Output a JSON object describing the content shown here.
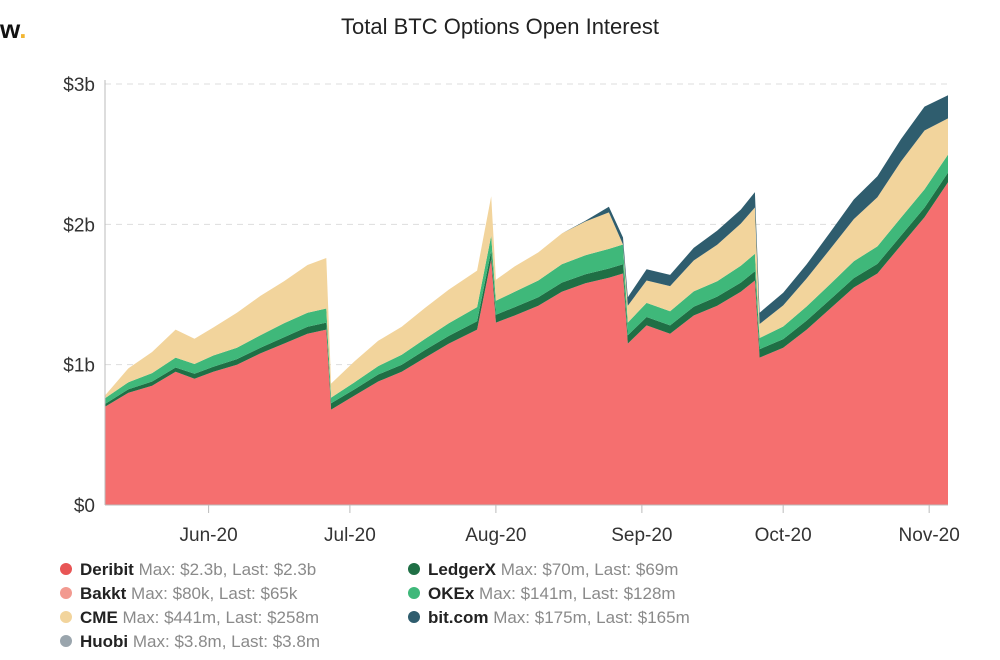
{
  "header": {
    "brand": "w",
    "brand_dot": ".",
    "title": "Total BTC Options Open Interest"
  },
  "colors": {
    "Deribit": "#f56f6f",
    "Bakkt": "#f29a90",
    "CME": "#f2d49c",
    "Huobi": "#9aa5ad",
    "LedgerX": "#1f6f45",
    "OKEx": "#3fb87a",
    "bit.com": "#2f5d6e",
    "gridline": "#dddddd",
    "axis": "#bbbbbb"
  },
  "legend": [
    {
      "series": "Deribit",
      "name": "Deribit",
      "stats": "Max: $2.3b, Last: $2.3b",
      "color": "#e85555"
    },
    {
      "series": "Bakkt",
      "name": "Bakkt",
      "stats": "Max: $80k, Last: $65k",
      "color": "#f29a90"
    },
    {
      "series": "CME",
      "name": "CME",
      "stats": "Max: $441m, Last: $258m",
      "color": "#f2d49c"
    },
    {
      "series": "Huobi",
      "name": "Huobi",
      "stats": "Max: $3.8m, Last: $3.8m",
      "color": "#9aa5ad"
    },
    {
      "series": "LedgerX",
      "name": "LedgerX",
      "stats": "Max: $70m, Last: $69m",
      "color": "#1f6f45"
    },
    {
      "series": "OKEx",
      "name": "OKEx",
      "stats": "Max: $141m, Last: $128m",
      "color": "#3fb87a"
    },
    {
      "series": "bit.com",
      "name": "bit.com",
      "stats": "Max: $175m, Last: $165m",
      "color": "#2f5d6e"
    }
  ],
  "chart_data": {
    "type": "area",
    "title": "Total BTC Options Open Interest",
    "stacked": true,
    "y_unit": "USD billions",
    "ylim": [
      0,
      3
    ],
    "y_ticks": [
      0,
      1,
      2,
      3
    ],
    "y_tick_labels": [
      "$0",
      "$1b",
      "$2b",
      "$3b"
    ],
    "x_ticks": [
      "2020-06-01",
      "2020-07-01",
      "2020-08-01",
      "2020-09-01",
      "2020-10-01",
      "2020-11-01"
    ],
    "x_tick_labels": [
      "Jun-20",
      "Jul-20",
      "Aug-20",
      "Sep-20",
      "Oct-20",
      "Nov-20"
    ],
    "x_range": [
      "2020-05-10",
      "2020-11-05"
    ],
    "grid": true,
    "stack_order": [
      "Deribit",
      "LedgerX",
      "OKEx",
      "CME",
      "bit.com"
    ],
    "x": [
      "2020-05-10",
      "2020-05-15",
      "2020-05-20",
      "2020-05-25",
      "2020-05-29",
      "2020-06-02",
      "2020-06-07",
      "2020-06-12",
      "2020-06-17",
      "2020-06-22",
      "2020-06-26",
      "2020-06-27",
      "2020-07-02",
      "2020-07-07",
      "2020-07-12",
      "2020-07-17",
      "2020-07-22",
      "2020-07-28",
      "2020-07-31",
      "2020-08-01",
      "2020-08-05",
      "2020-08-10",
      "2020-08-15",
      "2020-08-20",
      "2020-08-25",
      "2020-08-28",
      "2020-08-29",
      "2020-09-02",
      "2020-09-07",
      "2020-09-12",
      "2020-09-17",
      "2020-09-22",
      "2020-09-25",
      "2020-09-26",
      "2020-10-01",
      "2020-10-06",
      "2020-10-11",
      "2020-10-16",
      "2020-10-21",
      "2020-10-26",
      "2020-10-31",
      "2020-11-05"
    ],
    "series": [
      {
        "name": "Deribit",
        "values": [
          0.7,
          0.8,
          0.85,
          0.95,
          0.9,
          0.95,
          1.0,
          1.08,
          1.15,
          1.22,
          1.25,
          0.68,
          0.78,
          0.88,
          0.95,
          1.05,
          1.15,
          1.25,
          1.75,
          1.3,
          1.35,
          1.42,
          1.52,
          1.58,
          1.62,
          1.65,
          1.15,
          1.28,
          1.22,
          1.35,
          1.42,
          1.52,
          1.6,
          1.05,
          1.12,
          1.25,
          1.4,
          1.55,
          1.65,
          1.85,
          2.05,
          2.3
        ]
      },
      {
        "name": "LedgerX",
        "values": [
          0.02,
          0.025,
          0.03,
          0.03,
          0.035,
          0.035,
          0.04,
          0.04,
          0.045,
          0.05,
          0.05,
          0.045,
          0.045,
          0.05,
          0.05,
          0.055,
          0.055,
          0.06,
          0.06,
          0.055,
          0.06,
          0.06,
          0.065,
          0.065,
          0.065,
          0.065,
          0.06,
          0.06,
          0.06,
          0.062,
          0.065,
          0.065,
          0.065,
          0.06,
          0.062,
          0.065,
          0.065,
          0.067,
          0.068,
          0.069,
          0.069,
          0.069
        ]
      },
      {
        "name": "OKEx",
        "values": [
          0.04,
          0.05,
          0.06,
          0.07,
          0.07,
          0.08,
          0.08,
          0.09,
          0.1,
          0.1,
          0.1,
          0.04,
          0.05,
          0.06,
          0.07,
          0.08,
          0.09,
          0.1,
          0.11,
          0.1,
          0.11,
          0.12,
          0.13,
          0.135,
          0.14,
          0.141,
          0.09,
          0.1,
          0.1,
          0.11,
          0.11,
          0.12,
          0.125,
          0.08,
          0.09,
          0.1,
          0.11,
          0.12,
          0.125,
          0.128,
          0.13,
          0.128
        ]
      },
      {
        "name": "CME",
        "values": [
          0.02,
          0.1,
          0.15,
          0.2,
          0.18,
          0.2,
          0.25,
          0.28,
          0.3,
          0.34,
          0.36,
          0.1,
          0.15,
          0.18,
          0.2,
          0.22,
          0.24,
          0.26,
          0.28,
          0.15,
          0.18,
          0.2,
          0.22,
          0.24,
          0.26,
          0.0,
          0.12,
          0.16,
          0.18,
          0.22,
          0.26,
          0.3,
          0.33,
          0.1,
          0.15,
          0.2,
          0.25,
          0.3,
          0.35,
          0.4,
          0.42,
          0.258
        ]
      },
      {
        "name": "bit.com",
        "values": [
          0.0,
          0.0,
          0.0,
          0.0,
          0.0,
          0.0,
          0.0,
          0.0,
          0.0,
          0.0,
          0.0,
          0.0,
          0.0,
          0.0,
          0.0,
          0.0,
          0.0,
          0.0,
          0.0,
          0.0,
          0.0,
          0.0,
          0.0,
          0.005,
          0.04,
          0.05,
          0.06,
          0.08,
          0.08,
          0.09,
          0.1,
          0.1,
          0.11,
          0.08,
          0.09,
          0.1,
          0.12,
          0.14,
          0.15,
          0.16,
          0.17,
          0.165
        ]
      }
    ]
  }
}
